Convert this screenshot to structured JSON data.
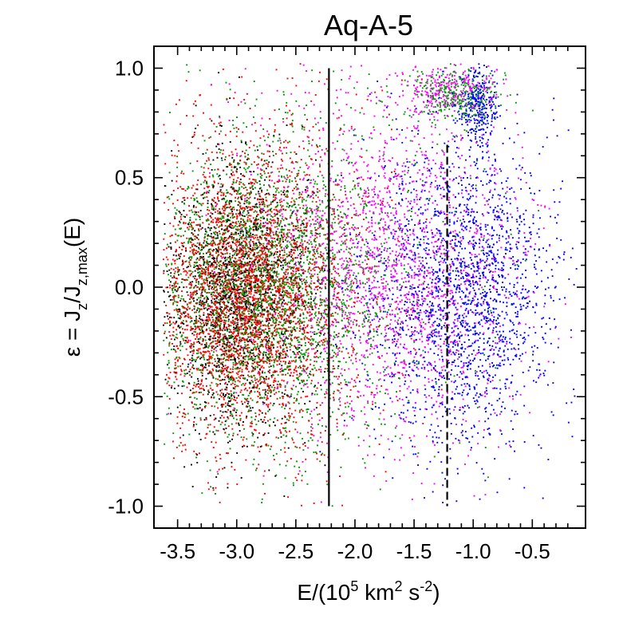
{
  "chart_data": {
    "type": "scatter",
    "title": "Aq-A-5",
    "xlabel": "E/(10^5 km^2 s^-2)",
    "xlabel_parts": {
      "p1": "E/(10",
      "e1": "5",
      "p2": " km",
      "e2": "2",
      "p3": " s",
      "e3": "-2",
      "p4": ")"
    },
    "ylabel": "ε = J_z/J_z,max(E)",
    "ylabel_parts": {
      "p1": "ε =  J",
      "s1": "z",
      "p2": "/J",
      "s2": "z,max",
      "p3": "(E)"
    },
    "xlim": [
      -3.7,
      -0.05
    ],
    "ylim": [
      -1.1,
      1.1
    ],
    "x_ticks": [
      -3.5,
      -3.0,
      -2.5,
      -2.0,
      -1.5,
      -1.0,
      -0.5
    ],
    "x_tick_labels": [
      "-3.5",
      "-3.0",
      "-2.5",
      "-2.0",
      "-1.5",
      "-1.0",
      "-0.5"
    ],
    "y_ticks": [
      1.0,
      0.5,
      0.0,
      -0.5,
      -1.0
    ],
    "y_tick_labels": [
      "1.0",
      "0.5",
      "0.0",
      "-0.5",
      "-1.0"
    ],
    "grid": false,
    "legend": "none",
    "series": [
      {
        "color": "#000000",
        "count": 1500,
        "components": [
          {
            "w": 1.0,
            "x_mean": -3.0,
            "x_sd": 0.32,
            "y_mean": -0.05,
            "y_sd": 0.3
          }
        ]
      },
      {
        "color": "#0000ff",
        "count": 2200,
        "components": [
          {
            "w": 0.72,
            "x_mean": -1.05,
            "x_sd": 0.38,
            "y_mean": 0.0,
            "y_sd": 0.32
          },
          {
            "w": 0.12,
            "x_mean": -0.95,
            "x_sd": 0.08,
            "y_mean": 0.82,
            "y_sd": 0.09
          },
          {
            "w": 0.16,
            "x_mean": -1.3,
            "x_sd": 0.45,
            "y_mean": -0.1,
            "y_sd": 0.45
          }
        ]
      },
      {
        "color": "#009900",
        "count": 3200,
        "components": [
          {
            "w": 0.7,
            "x_mean": -2.8,
            "x_sd": 0.45,
            "y_mean": -0.02,
            "y_sd": 0.32
          },
          {
            "w": 0.2,
            "x_mean": -2.3,
            "x_sd": 0.7,
            "y_mean": 0.05,
            "y_sd": 0.48
          },
          {
            "w": 0.1,
            "x_mean": -1.15,
            "x_sd": 0.18,
            "y_mean": 0.88,
            "y_sd": 0.06
          }
        ]
      },
      {
        "color": "#ff00ff",
        "count": 2300,
        "components": [
          {
            "w": 0.65,
            "x_mean": -1.6,
            "x_sd": 0.5,
            "y_mean": 0.05,
            "y_sd": 0.38
          },
          {
            "w": 0.25,
            "x_mean": -2.1,
            "x_sd": 0.6,
            "y_mean": 0.2,
            "y_sd": 0.5
          },
          {
            "w": 0.1,
            "x_mean": -1.2,
            "x_sd": 0.2,
            "y_mean": 0.9,
            "y_sd": 0.06
          }
        ]
      },
      {
        "color": "#ff0000",
        "count": 3400,
        "components": [
          {
            "w": 0.78,
            "x_mean": -2.95,
            "x_sd": 0.35,
            "y_mean": -0.05,
            "y_sd": 0.3
          },
          {
            "w": 0.22,
            "x_mean": -2.7,
            "x_sd": 0.55,
            "y_mean": 0.0,
            "y_sd": 0.5
          }
        ]
      }
    ],
    "vlines": [
      {
        "x": -2.22,
        "y_range": [
          -1.0,
          1.0
        ],
        "style": "solid"
      },
      {
        "x": -1.22,
        "y_range": [
          -1.0,
          0.65
        ],
        "style": "dashed"
      }
    ]
  }
}
